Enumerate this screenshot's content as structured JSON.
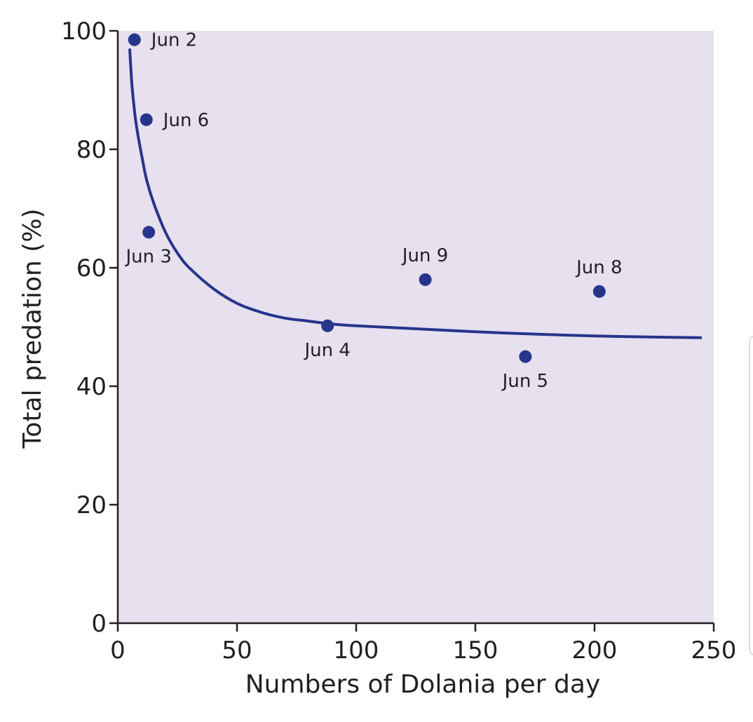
{
  "chart_data": {
    "type": "scatter",
    "title": "",
    "xlabel": "Numbers of Dolania per day",
    "ylabel": "Total predation (%)",
    "xlim": [
      0,
      250
    ],
    "ylim": [
      0,
      100
    ],
    "x_ticks": [
      0,
      50,
      100,
      150,
      200,
      250
    ],
    "y_ticks": [
      0,
      20,
      40,
      60,
      80,
      100
    ],
    "grid": false,
    "background_color": "#e6e0ef",
    "point_color": "#27348b",
    "curve_color": "#27348b",
    "points": [
      {
        "label": "Jun 2",
        "x": 7,
        "y": 98.5,
        "label_pos": "right"
      },
      {
        "label": "Jun 6",
        "x": 12,
        "y": 85,
        "label_pos": "right"
      },
      {
        "label": "Jun 3",
        "x": 13,
        "y": 66,
        "label_pos": "below"
      },
      {
        "label": "Jun 4",
        "x": 88,
        "y": 50.2,
        "label_pos": "below"
      },
      {
        "label": "Jun 9",
        "x": 129,
        "y": 58,
        "label_pos": "above"
      },
      {
        "label": "Jun 5",
        "x": 171,
        "y": 45,
        "label_pos": "below"
      },
      {
        "label": "Jun 8",
        "x": 202,
        "y": 56,
        "label_pos": "above"
      }
    ],
    "fitted_curve": {
      "x": [
        5,
        5.5,
        6,
        7,
        8,
        10,
        12,
        15,
        20,
        25,
        30,
        40,
        50,
        60,
        70,
        80,
        90,
        100,
        125,
        150,
        175,
        200,
        225,
        245
      ],
      "y": [
        97,
        93.5,
        90.5,
        86.5,
        83.5,
        79,
        75,
        71,
        66,
        62.5,
        60,
        56.5,
        54,
        52.5,
        51.5,
        51,
        50.5,
        50.2,
        49.7,
        49.2,
        48.8,
        48.5,
        48.3,
        48.2
      ]
    }
  }
}
